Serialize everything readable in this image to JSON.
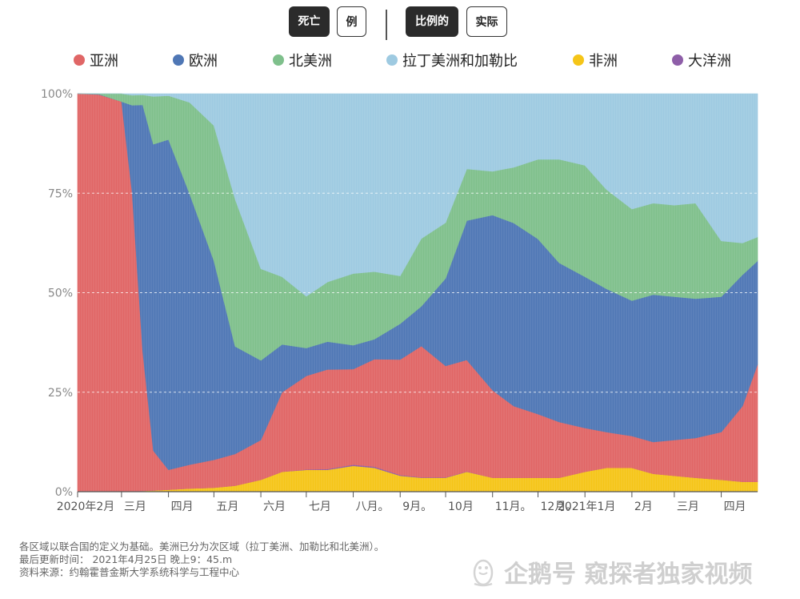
{
  "toggles": {
    "metric_deaths": "死亡",
    "metric_cases": "例",
    "mode_proportional": "比例的",
    "mode_actual": "实际"
  },
  "legend": [
    {
      "name": "亚洲",
      "color": "#e06666"
    },
    {
      "name": "欧洲",
      "color": "#4f77b5"
    },
    {
      "name": "北美洲",
      "color": "#7fc08c"
    },
    {
      "name": "拉丁美洲和加勒比",
      "color": "#9ecae1"
    },
    {
      "name": "非洲",
      "color": "#f5c518"
    },
    {
      "name": "大洋洲",
      "color": "#8e5ea8"
    }
  ],
  "chart_data": {
    "type": "area",
    "stacked": true,
    "normalized": true,
    "grid": true,
    "ylim": [
      0,
      100
    ],
    "y_ticks": [
      "0%",
      "25%",
      "50%",
      "75%",
      "100%"
    ],
    "x_ticks": [
      "2020年2月",
      "三月",
      "四月",
      "五月",
      "六月",
      "七月",
      "八月。",
      "9月。",
      "10月",
      "11月。",
      "12月。",
      "2021年1月",
      "2月",
      "三月",
      "四月"
    ],
    "x": [
      "2020-02-01",
      "2020-02-15",
      "2020-03-01",
      "2020-03-08",
      "2020-03-15",
      "2020-03-22",
      "2020-04-01",
      "2020-04-15",
      "2020-05-01",
      "2020-05-15",
      "2020-06-01",
      "2020-06-15",
      "2020-07-01",
      "2020-07-15",
      "2020-08-01",
      "2020-08-15",
      "2020-09-01",
      "2020-09-15",
      "2020-10-01",
      "2020-10-15",
      "2020-11-01",
      "2020-11-15",
      "2020-12-01",
      "2020-12-15",
      "2021-01-01",
      "2021-01-15",
      "2021-02-01",
      "2021-02-15",
      "2021-03-01",
      "2021-03-15",
      "2021-04-01",
      "2021-04-15",
      "2021-04-25"
    ],
    "series": [
      {
        "name": "非洲",
        "values": [
          0,
          0,
          0,
          0.1,
          0.2,
          0.3,
          0.5,
          0.8,
          1.0,
          1.5,
          3.0,
          5.0,
          5.5,
          5.5,
          6.5,
          6.0,
          4.0,
          3.5,
          3.5,
          5.0,
          3.5,
          3.5,
          3.5,
          3.5,
          5.0,
          6.0,
          6.0,
          4.5,
          4.0,
          3.5,
          3.0,
          2.5,
          2.5
        ]
      },
      {
        "name": "大洋洲",
        "values": [
          0,
          0,
          0,
          0,
          0,
          0,
          0,
          0,
          0,
          0,
          0,
          0,
          0.1,
          0.2,
          0.3,
          0.3,
          0.2,
          0.1,
          0.1,
          0.1,
          0,
          0,
          0,
          0,
          0,
          0,
          0,
          0,
          0,
          0,
          0,
          0,
          0
        ]
      },
      {
        "name": "亚洲",
        "values": [
          100,
          99.8,
          98,
          75,
          35,
          10,
          5,
          6,
          7,
          8,
          10,
          20,
          23.5,
          25,
          24,
          27,
          29,
          33,
          28,
          28,
          22,
          18,
          16,
          14,
          11,
          9,
          8,
          8,
          9,
          10,
          12,
          19,
          29.5
        ]
      },
      {
        "name": "欧洲",
        "values": [
          0,
          0.1,
          0,
          22,
          62,
          77,
          83,
          68,
          50,
          27,
          20,
          12,
          7,
          7,
          6,
          5,
          9,
          10,
          22,
          35,
          44,
          46,
          44,
          40,
          38,
          36,
          34,
          37,
          36,
          35,
          34,
          33,
          26
        ]
      },
      {
        "name": "北美洲",
        "values": [
          0,
          0.1,
          2,
          2.5,
          2.5,
          12,
          11,
          23,
          34,
          37,
          23,
          17,
          13,
          15,
          18,
          17,
          12,
          17,
          14,
          13,
          11,
          14,
          20,
          26,
          28,
          25,
          23,
          23,
          23,
          24,
          14,
          8,
          6
        ]
      },
      {
        "name": "拉丁美洲和加勒比",
        "values": [
          0,
          0,
          0,
          0.4,
          0.3,
          0.7,
          0.5,
          2.2,
          8,
          26.5,
          44,
          46,
          50.9,
          47.3,
          45.2,
          44.7,
          45.8,
          36.4,
          32.4,
          18.9,
          19.5,
          18.5,
          16.5,
          16.5,
          18,
          24,
          29,
          27.5,
          28,
          27.5,
          37,
          37.5,
          36
        ]
      }
    ]
  },
  "footer": {
    "note": "各区域以联合国的定义为基础。美洲已分为次区域（拉丁美洲、加勒比和北美洲）。",
    "updated": "最后更新时间： 2021年4月25日 晚上9：45.m",
    "source": "资料来源：约翰霍普金斯大学系统科学与工程中心"
  },
  "watermark": "企鹅号 窥探者独家视频"
}
